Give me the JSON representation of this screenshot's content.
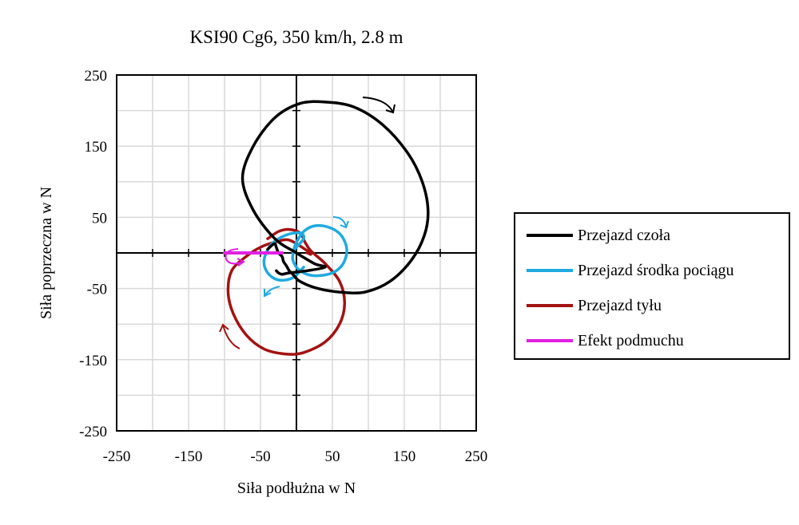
{
  "chart_data": {
    "type": "line",
    "title": "KSI90 Cg6, 350 km/h, 2.8 m",
    "xlabel": "Siła podłużna w N",
    "ylabel": "Siła poprzeczna w N",
    "xlim": [
      -250,
      250
    ],
    "ylim": [
      -250,
      250
    ],
    "xticks": [
      "-250",
      "-150",
      "-50",
      "50",
      "150",
      "250"
    ],
    "yticks": [
      "250",
      "150",
      "50",
      "-50",
      "-150",
      "-250"
    ],
    "grid": true,
    "legend_position": "right",
    "series": [
      {
        "name": "Przejazd czoła",
        "color": "#000000",
        "x": [
          -40,
          -35,
          -30,
          -28,
          -25,
          -20,
          -18,
          -14,
          -10,
          -5,
          5,
          30,
          60,
          95,
          130,
          160,
          178,
          183,
          175,
          155,
          120,
          80,
          40,
          5,
          -30,
          -60,
          -75,
          -60,
          -30,
          0,
          25,
          40,
          15,
          -10,
          -20,
          -25,
          -28
        ],
        "y": [
          5,
          10,
          13,
          8,
          0,
          -5,
          -12,
          -18,
          -25,
          -30,
          -40,
          -50,
          -55,
          -55,
          -40,
          -10,
          25,
          60,
          100,
          140,
          180,
          205,
          212,
          210,
          190,
          150,
          105,
          60,
          20,
          0,
          -15,
          -20,
          -25,
          -28,
          -30,
          -28,
          -25
        ]
      },
      {
        "name": "Przejazd środka pociągu",
        "color": "#1faae0",
        "x": [
          -5,
          0,
          10,
          25,
          45,
          62,
          70,
          65,
          50,
          25,
          5,
          -5,
          -2,
          10,
          5,
          -15,
          -35,
          -45,
          -40,
          -25,
          -5,
          10
        ],
        "y": [
          0,
          15,
          30,
          38,
          36,
          25,
          5,
          -15,
          -28,
          -32,
          -25,
          -10,
          5,
          20,
          28,
          25,
          12,
          -10,
          -28,
          -38,
          -35,
          -20
        ]
      },
      {
        "name": "Przejazd tyłu",
        "color": "#a31212",
        "x": [
          -40,
          -25,
          -10,
          5,
          12,
          20,
          40,
          60,
          67,
          60,
          40,
          10,
          -15,
          -45,
          -70,
          -88,
          -95,
          -90,
          -70,
          -50,
          -30,
          -10,
          15,
          20,
          15
        ],
        "y": [
          20,
          30,
          33,
          28,
          15,
          3,
          -15,
          -40,
          -70,
          -100,
          -125,
          -140,
          -142,
          -135,
          -115,
          -85,
          -55,
          -25,
          -5,
          8,
          15,
          18,
          3,
          -2,
          0
        ]
      },
      {
        "name": "Efekt podmuchu",
        "color": "#e020e0",
        "x": [
          -100,
          -85,
          -70,
          -55,
          -40,
          -25,
          -20
        ],
        "y": [
          0,
          0,
          0,
          0,
          0,
          0,
          0
        ]
      }
    ]
  }
}
